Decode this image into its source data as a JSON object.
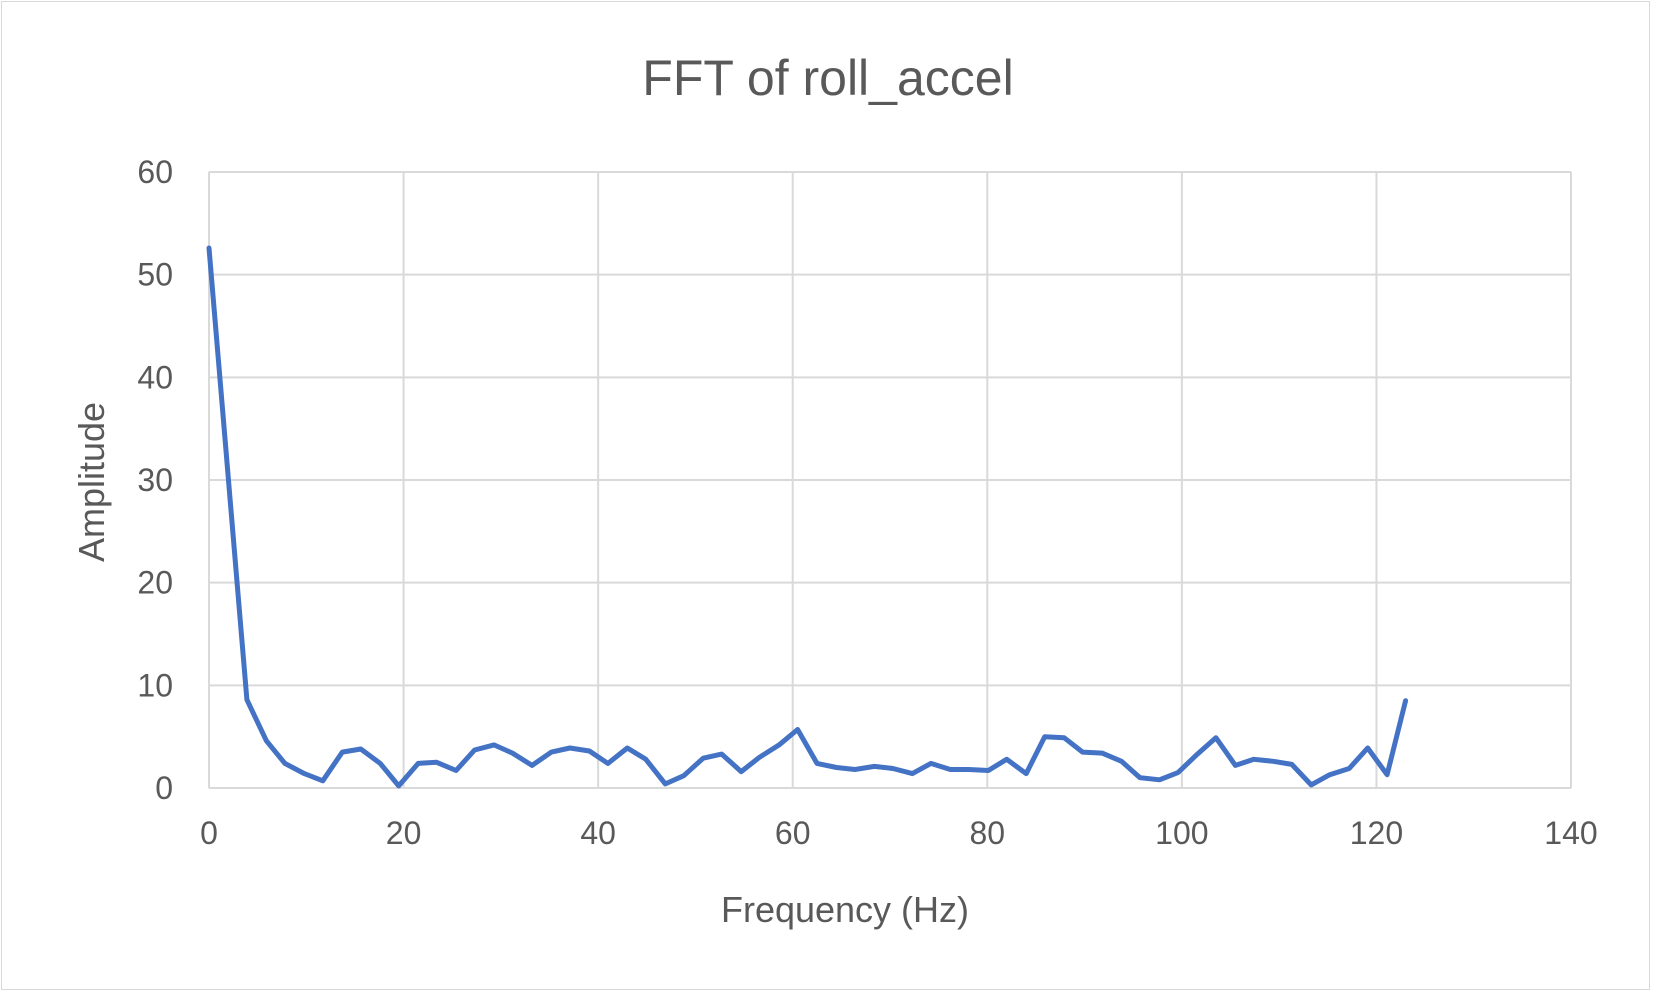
{
  "chart_data": {
    "type": "line",
    "title": "FFT of roll_accel",
    "xlabel": "Frequency (Hz)",
    "ylabel": "Amplitude",
    "xlim": [
      0,
      140
    ],
    "ylim": [
      0,
      60
    ],
    "xticks": [
      0,
      20,
      40,
      60,
      80,
      100,
      120,
      140
    ],
    "yticks": [
      0,
      10,
      20,
      30,
      40,
      50,
      60
    ],
    "grid": true,
    "legend": "none",
    "line_color": "#4472c4",
    "series": [
      {
        "x": [
          0,
          3.9,
          5.9,
          7.8,
          9.8,
          11.7,
          13.7,
          15.6,
          17.6,
          19.5,
          21.5,
          23.4,
          25.4,
          27.3,
          29.3,
          31.2,
          33.2,
          35.2,
          37.1,
          39.1,
          41.0,
          43.0,
          44.9,
          46.9,
          48.8,
          50.8,
          52.7,
          54.7,
          56.6,
          58.6,
          60.5,
          62.5,
          64.5,
          66.4,
          68.4,
          70.3,
          72.3,
          74.2,
          76.2,
          78.1,
          80.1,
          82.0,
          84.0,
          85.9,
          87.9,
          89.8,
          91.8,
          93.8,
          95.7,
          97.7,
          99.6,
          101.6,
          103.5,
          105.5,
          107.4,
          109.4,
          111.3,
          113.3,
          115.2,
          117.2,
          119.1,
          121.1,
          123.0
        ],
        "y": [
          52.6,
          8.6,
          4.6,
          2.4,
          1.4,
          0.7,
          3.5,
          3.8,
          2.4,
          0.2,
          2.4,
          2.5,
          1.7,
          3.7,
          4.2,
          3.4,
          2.2,
          3.5,
          3.9,
          3.6,
          2.4,
          3.9,
          2.8,
          0.4,
          1.2,
          2.9,
          3.3,
          1.6,
          3.0,
          4.2,
          5.7,
          2.4,
          2.0,
          1.8,
          2.1,
          1.9,
          1.4,
          2.4,
          1.8,
          1.8,
          1.7,
          2.8,
          1.4,
          5.0,
          4.9,
          3.5,
          3.4,
          2.6,
          1.0,
          0.8,
          1.5,
          3.3,
          4.9,
          2.2,
          2.8,
          2.6,
          2.3,
          0.3,
          1.3,
          1.9,
          3.9,
          1.3,
          8.5
        ]
      }
    ]
  }
}
